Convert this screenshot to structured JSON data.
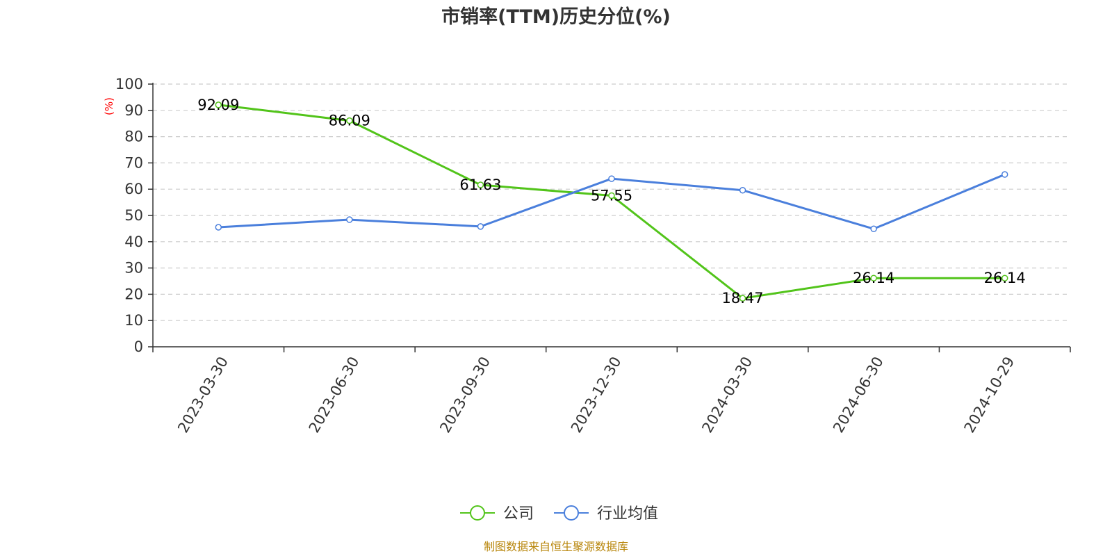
{
  "chart_data": {
    "type": "line",
    "title": "市销率(TTM)历史分位(%)",
    "y_unit": "(%)",
    "categories": [
      "2023-03-30",
      "2023-06-30",
      "2023-09-30",
      "2023-12-30",
      "2024-03-30",
      "2024-06-30",
      "2024-10-29"
    ],
    "ylim": [
      0,
      100
    ],
    "yticks": [
      0,
      10,
      20,
      30,
      40,
      50,
      60,
      70,
      80,
      90,
      100
    ],
    "grid": true,
    "legend_position": "bottom",
    "series": [
      {
        "name": "公司",
        "color": "#52c41a",
        "values": [
          92.09,
          86.09,
          61.63,
          57.55,
          18.47,
          26.14,
          26.14
        ],
        "labels": [
          "92.09",
          "86.09",
          "61.63",
          "57.55",
          "18.47",
          "26.14",
          "26.14"
        ]
      },
      {
        "name": "行业均值",
        "color": "#4a7fdc",
        "values": [
          45.5,
          48.4,
          45.8,
          64.0,
          59.6,
          44.9,
          65.6
        ]
      }
    ],
    "source": "制图数据来自恒生聚源数据库"
  }
}
